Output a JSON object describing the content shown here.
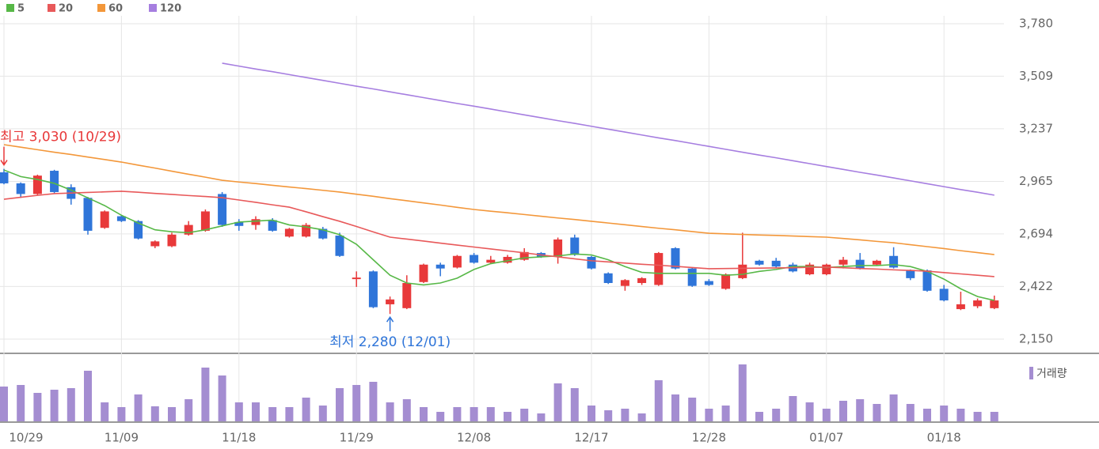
{
  "chart_data": {
    "type": "candlestick",
    "categories": [
      "10/29",
      null,
      null,
      null,
      null,
      null,
      null,
      "11/09",
      null,
      null,
      null,
      null,
      null,
      null,
      "11/18",
      null,
      null,
      null,
      null,
      null,
      null,
      "11/29",
      null,
      null,
      null,
      null,
      null,
      null,
      "12/08",
      null,
      null,
      null,
      null,
      null,
      null,
      "12/17",
      null,
      null,
      null,
      null,
      null,
      null,
      "12/28",
      null,
      null,
      null,
      null,
      null,
      null,
      "01/07",
      null,
      null,
      null,
      null,
      null,
      null,
      "01/18",
      null,
      null,
      null
    ],
    "open": [
      3012,
      2955,
      2900,
      3020,
      2935,
      2880,
      2725,
      2785,
      2760,
      2630,
      2630,
      2690,
      2710,
      2900,
      2755,
      2740,
      2765,
      2680,
      2680,
      2720,
      2685,
      2460,
      2500,
      2330,
      2310,
      2445,
      2535,
      2520,
      2585,
      2545,
      2545,
      2560,
      2595,
      2575,
      2675,
      2575,
      2490,
      2425,
      2440,
      2430,
      2620,
      2515,
      2450,
      2410,
      2465,
      2555,
      2555,
      2535,
      2485,
      2485,
      2535,
      2560,
      2535,
      2580,
      2505,
      2505,
      2410,
      2305,
      2320,
      2310
    ],
    "high": [
      3030,
      2960,
      3000,
      3025,
      2950,
      2885,
      2815,
      2790,
      2765,
      2660,
      2700,
      2760,
      2820,
      2910,
      2770,
      2785,
      2775,
      2725,
      2750,
      2730,
      2700,
      2500,
      2505,
      2370,
      2480,
      2540,
      2545,
      2585,
      2595,
      2580,
      2585,
      2620,
      2600,
      2675,
      2690,
      2580,
      2495,
      2460,
      2470,
      2600,
      2625,
      2520,
      2460,
      2490,
      2700,
      2560,
      2570,
      2545,
      2545,
      2540,
      2575,
      2595,
      2560,
      2625,
      2510,
      2510,
      2430,
      2395,
      2360,
      2375
    ],
    "low": [
      2950,
      2880,
      2895,
      2900,
      2845,
      2690,
      2720,
      2755,
      2665,
      2620,
      2625,
      2685,
      2705,
      2730,
      2710,
      2715,
      2705,
      2675,
      2675,
      2665,
      2575,
      2420,
      2310,
      2280,
      2305,
      2440,
      2475,
      2515,
      2540,
      2540,
      2540,
      2555,
      2570,
      2540,
      2580,
      2510,
      2435,
      2400,
      2430,
      2425,
      2510,
      2420,
      2425,
      2405,
      2460,
      2530,
      2520,
      2495,
      2480,
      2480,
      2515,
      2510,
      2530,
      2515,
      2455,
      2395,
      2345,
      2300,
      2310,
      2305
    ],
    "close": [
      2955,
      2900,
      2995,
      2910,
      2875,
      2710,
      2810,
      2760,
      2670,
      2655,
      2690,
      2740,
      2810,
      2740,
      2735,
      2770,
      2710,
      2720,
      2740,
      2670,
      2580,
      2468,
      2315,
      2355,
      2440,
      2535,
      2515,
      2580,
      2545,
      2560,
      2575,
      2600,
      2575,
      2665,
      2585,
      2515,
      2440,
      2455,
      2465,
      2595,
      2515,
      2425,
      2430,
      2485,
      2535,
      2535,
      2525,
      2500,
      2535,
      2535,
      2560,
      2515,
      2555,
      2520,
      2465,
      2400,
      2350,
      2330,
      2350,
      2350
    ],
    "up_color": "#e8393a",
    "down_color": "#2f75d9",
    "series": [
      {
        "name": "5",
        "color": "#57b847",
        "values": [
          3024,
          2990,
          2975,
          2955,
          2920,
          2880,
          2840,
          2790,
          2750,
          2715,
          2705,
          2700,
          2715,
          2735,
          2755,
          2760,
          2765,
          2740,
          2730,
          2715,
          2690,
          2640,
          2560,
          2480,
          2440,
          2430,
          2440,
          2465,
          2510,
          2540,
          2555,
          2570,
          2575,
          2580,
          2590,
          2585,
          2560,
          2525,
          2495,
          2490,
          2490,
          2490,
          2490,
          2480,
          2485,
          2500,
          2510,
          2525,
          2525,
          2520,
          2525,
          2530,
          2530,
          2535,
          2525,
          2500,
          2460,
          2410,
          2370,
          2350
        ]
      },
      {
        "name": "20",
        "color": "#e8595a",
        "values": [
          2873,
          2883,
          2893,
          2902,
          2905,
          2908,
          2911,
          2914,
          2909,
          2903,
          2898,
          2892,
          2887,
          2881,
          2869,
          2857,
          2844,
          2832,
          2808,
          2783,
          2759,
          2732,
          2704,
          2677,
          2667,
          2657,
          2646,
          2636,
          2626,
          2616,
          2606,
          2596,
          2585,
          2575,
          2565,
          2555,
          2549,
          2543,
          2537,
          2532,
          2526,
          2520,
          2514,
          2515,
          2516,
          2517,
          2518,
          2519,
          2521,
          2522,
          2519,
          2515,
          2512,
          2508,
          2505,
          2501,
          2494,
          2487,
          2480,
          2473
        ]
      },
      {
        "name": "60",
        "color": "#f3973a",
        "values": [
          3155,
          3142,
          3129,
          3116,
          3104,
          3091,
          3078,
          3065,
          3049,
          3034,
          3018,
          3002,
          2987,
          2971,
          2962,
          2954,
          2945,
          2936,
          2928,
          2919,
          2910,
          2899,
          2888,
          2876,
          2865,
          2854,
          2843,
          2831,
          2820,
          2811,
          2803,
          2794,
          2785,
          2776,
          2768,
          2759,
          2750,
          2741,
          2732,
          2723,
          2715,
          2706,
          2697,
          2694,
          2691,
          2688,
          2686,
          2683,
          2680,
          2677,
          2670,
          2663,
          2655,
          2648,
          2638,
          2628,
          2618,
          2607,
          2597,
          2587
        ]
      },
      {
        "name": "120",
        "color": "#a67ee0",
        "values": [
          null,
          null,
          null,
          null,
          null,
          null,
          null,
          null,
          null,
          null,
          null,
          null,
          null,
          3576,
          3561,
          3546,
          3532,
          3517,
          3502,
          3487,
          3472,
          3457,
          3443,
          3428,
          3413,
          3398,
          3383,
          3368,
          3354,
          3339,
          3324,
          3309,
          3294,
          3279,
          3265,
          3250,
          3235,
          3220,
          3205,
          3190,
          3176,
          3161,
          3146,
          3131,
          3116,
          3101,
          3087,
          3072,
          3057,
          3042,
          3027,
          3012,
          2998,
          2983,
          2968,
          2953,
          2938,
          2923,
          2909,
          2894
        ]
      }
    ],
    "ylim": [
      2150,
      3780
    ],
    "yticks": [
      {
        "value": 2150,
        "label": "2,150"
      },
      {
        "value": 2422,
        "label": "2,422"
      },
      {
        "value": 2694,
        "label": "2,694"
      },
      {
        "value": 2965,
        "label": "2,965"
      },
      {
        "value": 3237,
        "label": "3,237"
      },
      {
        "value": 3509,
        "label": "3,509"
      },
      {
        "value": 3780,
        "label": "3,780"
      }
    ],
    "grid": true,
    "annotations": {
      "high": "최고 3,030 (10/29)",
      "low": "최저 2,280 (12/01)"
    },
    "volume": {
      "name": "거래량",
      "color": "#a48dd1",
      "values": [
        44,
        46,
        36,
        40,
        42,
        64,
        24,
        18,
        34,
        19,
        18,
        28,
        68,
        58,
        24,
        24,
        18,
        18,
        30,
        20,
        42,
        46,
        50,
        24,
        28,
        18,
        12,
        18,
        18,
        18,
        12,
        16,
        10,
        48,
        42,
        20,
        14,
        16,
        10,
        52,
        34,
        30,
        16,
        20,
        72,
        12,
        16,
        32,
        24,
        16,
        26,
        28,
        22,
        34,
        22,
        16,
        20,
        16,
        12,
        12
      ]
    }
  }
}
